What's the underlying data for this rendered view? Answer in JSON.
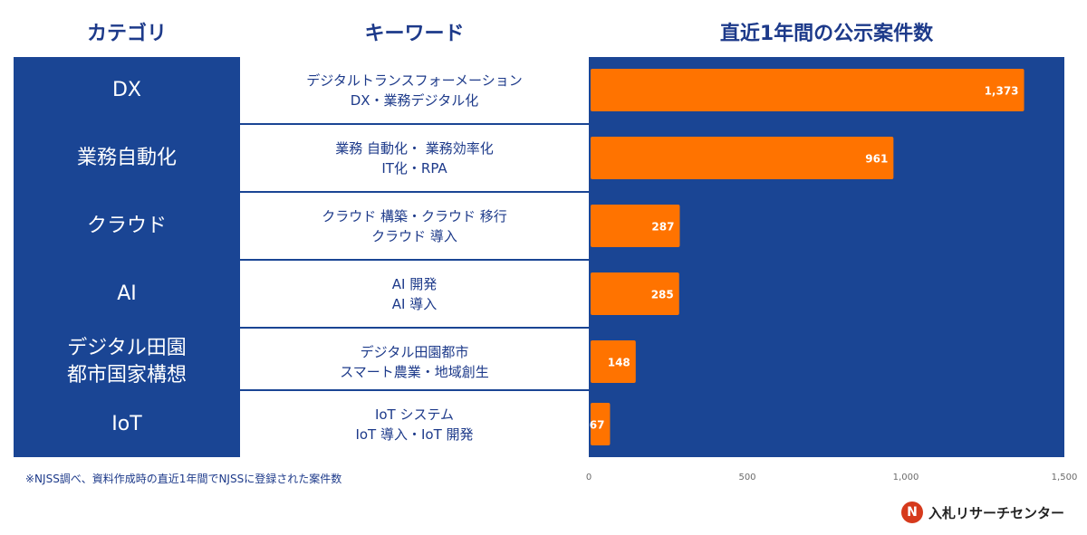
{
  "headers": {
    "category": "カテゴリ",
    "keyword": "キーワード",
    "count": "直近1年間の公示案件数"
  },
  "rows": [
    {
      "category": "DX",
      "keywords": [
        "デジタルトランスフォーメーション",
        "DX・業務デジタル化"
      ]
    },
    {
      "category": "業務自動化",
      "keywords": [
        "業務 自動化・ 業務効率化",
        "IT化・RPA"
      ]
    },
    {
      "category": "クラウド",
      "keywords": [
        "クラウド 構築・クラウド 移行",
        "クラウド 導入"
      ]
    },
    {
      "category": "AI",
      "keywords": [
        "AI 開発",
        "AI 導入"
      ]
    },
    {
      "category": "デジタル田園\n都市国家構想",
      "keywords": [
        "デジタル田園都市",
        "スマート農業・地域創生"
      ]
    },
    {
      "category": "IoT",
      "keywords": [
        "IoT システム",
        "IoT 導入・IoT 開発"
      ]
    }
  ],
  "chart_data": {
    "type": "bar",
    "orientation": "horizontal",
    "title": "直近1年間の公示案件数",
    "categories": [
      "DX",
      "業務自動化",
      "クラウド",
      "AI",
      "デジタル田園都市国家構想",
      "IoT"
    ],
    "values": [
      1373,
      961,
      287,
      285,
      148,
      67
    ],
    "value_labels": [
      "1,373",
      "961",
      "287",
      "285",
      "148",
      "67"
    ],
    "xlim": [
      0,
      1500
    ],
    "xticks": [
      0,
      500,
      1000,
      1500
    ],
    "xtick_labels": [
      "0",
      "500",
      "1,000",
      "1,500"
    ],
    "grid": false,
    "colors": {
      "bar": "#ff7300",
      "background": "#1a4594",
      "bar_label": "#ffffff"
    }
  },
  "footnote": "※NJSS調べ、資料作成時の直近1年間でNJSSに登録された案件数",
  "logo": {
    "mark": "N",
    "text": "入札リサーチセンター"
  }
}
